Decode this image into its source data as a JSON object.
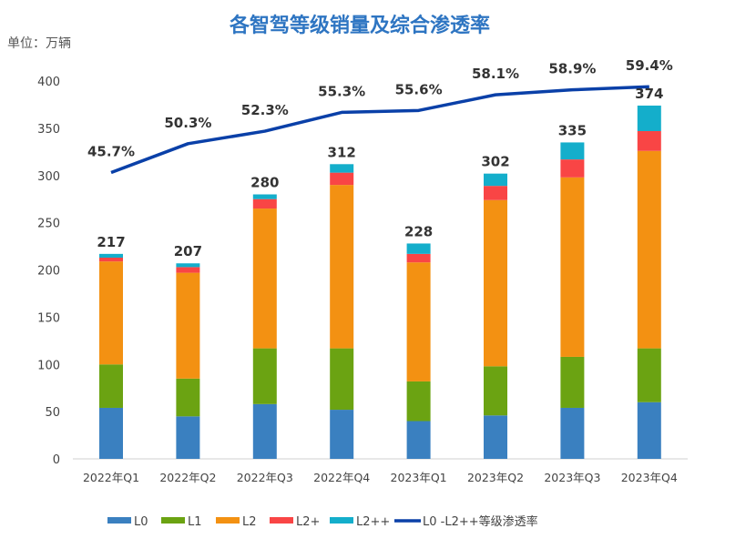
{
  "chart_data": {
    "type": "bar",
    "stacked": true,
    "title": "各智驾等级销量及综合渗透率",
    "unit_label": "单位：万辆",
    "categories": [
      "2022年Q1",
      "2022年Q2",
      "2022年Q3",
      "2022年Q4",
      "2023年Q1",
      "2023年Q2",
      "2023年Q3",
      "2023年Q4"
    ],
    "ylim": [
      0,
      400
    ],
    "yticks": [
      0,
      50,
      100,
      150,
      200,
      250,
      300,
      350,
      400
    ],
    "grid": false,
    "legend_position": "bottom",
    "series": [
      {
        "name": "L0",
        "color": "#3a80c0",
        "values": [
          54,
          45,
          58,
          52,
          40,
          46,
          54,
          60
        ]
      },
      {
        "name": "L1",
        "color": "#6ba312",
        "values": [
          46,
          40,
          59,
          65,
          42,
          52,
          54,
          57
        ]
      },
      {
        "name": "L2",
        "color": "#f39112",
        "values": [
          109,
          112,
          148,
          173,
          126,
          176,
          190,
          209
        ]
      },
      {
        "name": "L2+",
        "color": "#f94545",
        "values": [
          4,
          6,
          10,
          13,
          9,
          15,
          19,
          21
        ]
      },
      {
        "name": "L2++",
        "color": "#14aecb",
        "values": [
          4,
          4,
          5,
          9,
          11,
          13,
          18,
          27
        ]
      }
    ],
    "totals": [
      "217",
      "207",
      "280",
      "312",
      "228",
      "302",
      "335",
      "374"
    ],
    "line_series": {
      "name": "L0 -L2++等级渗透率",
      "color": "#0a40a8",
      "axis": "secondary-hidden",
      "ylim": [
        0,
        60.3
      ],
      "values": [
        45.7,
        50.3,
        52.3,
        55.3,
        55.6,
        58.1,
        58.9,
        59.4
      ],
      "labels": [
        "45.7%",
        "50.3%",
        "52.3%",
        "55.3%",
        "55.6%",
        "58.1%",
        "58.9%",
        "59.4%"
      ]
    }
  }
}
